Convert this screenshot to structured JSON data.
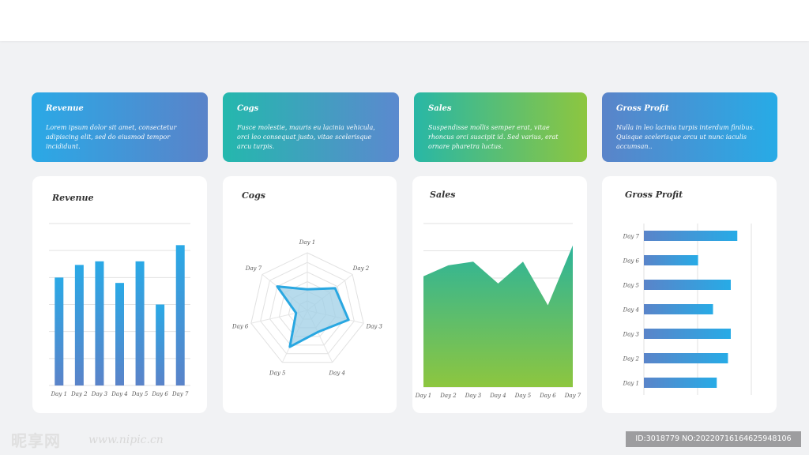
{
  "summary_cards": [
    {
      "title": "Revenue",
      "text": "Lorem ipsum dolor sit amet, consectetur adipiscing elit, sed do eiusmod tempor incididunt."
    },
    {
      "title": "Cogs",
      "text": "Fusce molestie, mauris eu lacinia vehicula, orci leo consequat justo, vitae scelerisque arcu turpis."
    },
    {
      "title": "Sales",
      "text": "Suspendisse mollis semper erat, vitae rhoncus orci suscipit id. Sed varius, erat ornare pharetra luctus."
    },
    {
      "title": "Gross Profit",
      "text": "Nulla in leo lacinia turpis interdum finibus. Quisque scelerisque arcu ut nunc iaculis accumsan.."
    }
  ],
  "chart_data": [
    {
      "type": "bar",
      "title": "Revenue",
      "categories": [
        "Day 1",
        "Day 2",
        "Day 3",
        "Day 4",
        "Day 5",
        "Day 6",
        "Day 7"
      ],
      "values": [
        60,
        67,
        69,
        57,
        69,
        45,
        78
      ],
      "ylim": [
        0,
        90
      ],
      "grid": true,
      "colors": [
        "#2aa9e6",
        "#5a83c9"
      ]
    },
    {
      "type": "radar",
      "title": "Cogs",
      "categories": [
        "Day 1",
        "Day 2",
        "Day 3",
        "Day 4",
        "Day 5",
        "Day 6",
        "Day 7"
      ],
      "values": [
        2.2,
        3.7,
        4.4,
        2.5,
        4.2,
        1.2,
        4.0
      ],
      "rmax": 6,
      "rings": 6,
      "colors": [
        "#29a7e1",
        "#a9d6e8"
      ]
    },
    {
      "type": "area",
      "title": "Sales",
      "categories": [
        "Day 1",
        "Day 2",
        "Day 3",
        "Day 4",
        "Day 5",
        "Day 6",
        "Day 7"
      ],
      "values": [
        61,
        67,
        69,
        57,
        69,
        45,
        78
      ],
      "ylim": [
        0,
        90
      ],
      "grid": true,
      "colors": [
        "#2cb49a",
        "#8dc63f"
      ]
    },
    {
      "type": "bar",
      "orientation": "horizontal",
      "title": "Gross Profit",
      "categories": [
        "Day 7",
        "Day 6",
        "Day 5",
        "Day 4",
        "Day 3",
        "Day 2",
        "Day 1"
      ],
      "values": [
        100,
        58,
        93,
        74,
        93,
        90,
        78
      ],
      "xlim": [
        0,
        115
      ],
      "grid": true,
      "colors": [
        "#5a84c9",
        "#27abe6"
      ]
    }
  ],
  "watermark": {
    "logo": "昵享网",
    "url": "www.nipic.cn",
    "id": "ID:3018779 NO:20220716164625948106"
  }
}
